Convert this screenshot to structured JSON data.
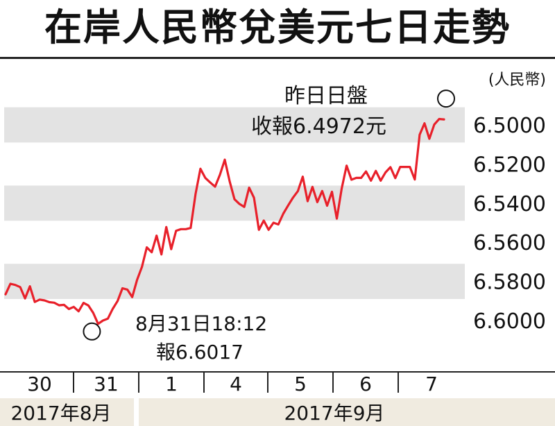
{
  "title": "在岸人民幣兌美元七日走勢",
  "chart_data": {
    "type": "line",
    "unit": "(人民幣)",
    "y_reversed": true,
    "ylim": [
      6.49,
      6.61
    ],
    "yticks": [
      "6.5000",
      "6.5200",
      "6.5400",
      "6.5600",
      "6.5800",
      "6.6000"
    ],
    "grid": "alternating horizontal bands",
    "series_color": "#e8202a",
    "day_labels": [
      "30",
      "31",
      "1",
      "4",
      "5",
      "6",
      "7"
    ],
    "month_labels": [
      "2017年8月",
      "2017年9月"
    ],
    "annotations": [
      {
        "line1": "8月31日18:12",
        "line2": "報6.6017"
      },
      {
        "line1": "昨日日盤",
        "line2": "收報6.4972元"
      }
    ],
    "values": [
      6.5866,
      6.5812,
      6.5818,
      6.5829,
      6.5887,
      6.5825,
      6.5905,
      6.5893,
      6.5897,
      6.5906,
      6.5909,
      6.5922,
      6.592,
      6.5941,
      6.593,
      6.5953,
      6.591,
      6.5923,
      6.5961,
      6.6017,
      6.6,
      6.599,
      6.594,
      6.59,
      6.5835,
      6.5842,
      6.588,
      6.5792,
      6.5726,
      6.5626,
      6.5651,
      6.5566,
      6.5662,
      6.5522,
      6.5635,
      6.5541,
      6.5533,
      6.5533,
      6.5527,
      6.5353,
      6.5224,
      6.5271,
      6.5294,
      6.5316,
      6.5255,
      6.5178,
      6.5288,
      6.538,
      6.5404,
      6.5419,
      6.5321,
      6.5372,
      6.5536,
      6.5489,
      6.5536,
      6.55,
      6.5509,
      6.5454,
      6.5412,
      6.5372,
      6.5339,
      6.5265,
      6.539,
      6.5317,
      6.5395,
      6.5338,
      6.5413,
      6.5342,
      6.5479,
      6.5326,
      6.5208,
      6.528,
      6.5271,
      6.5271,
      6.5238,
      6.5285,
      6.5235,
      6.5285,
      6.5243,
      6.5216,
      6.5272,
      6.5215,
      6.5215,
      6.5215,
      6.5279,
      6.505,
      6.4992,
      6.5071,
      6.4998,
      6.497,
      6.4972
    ]
  }
}
